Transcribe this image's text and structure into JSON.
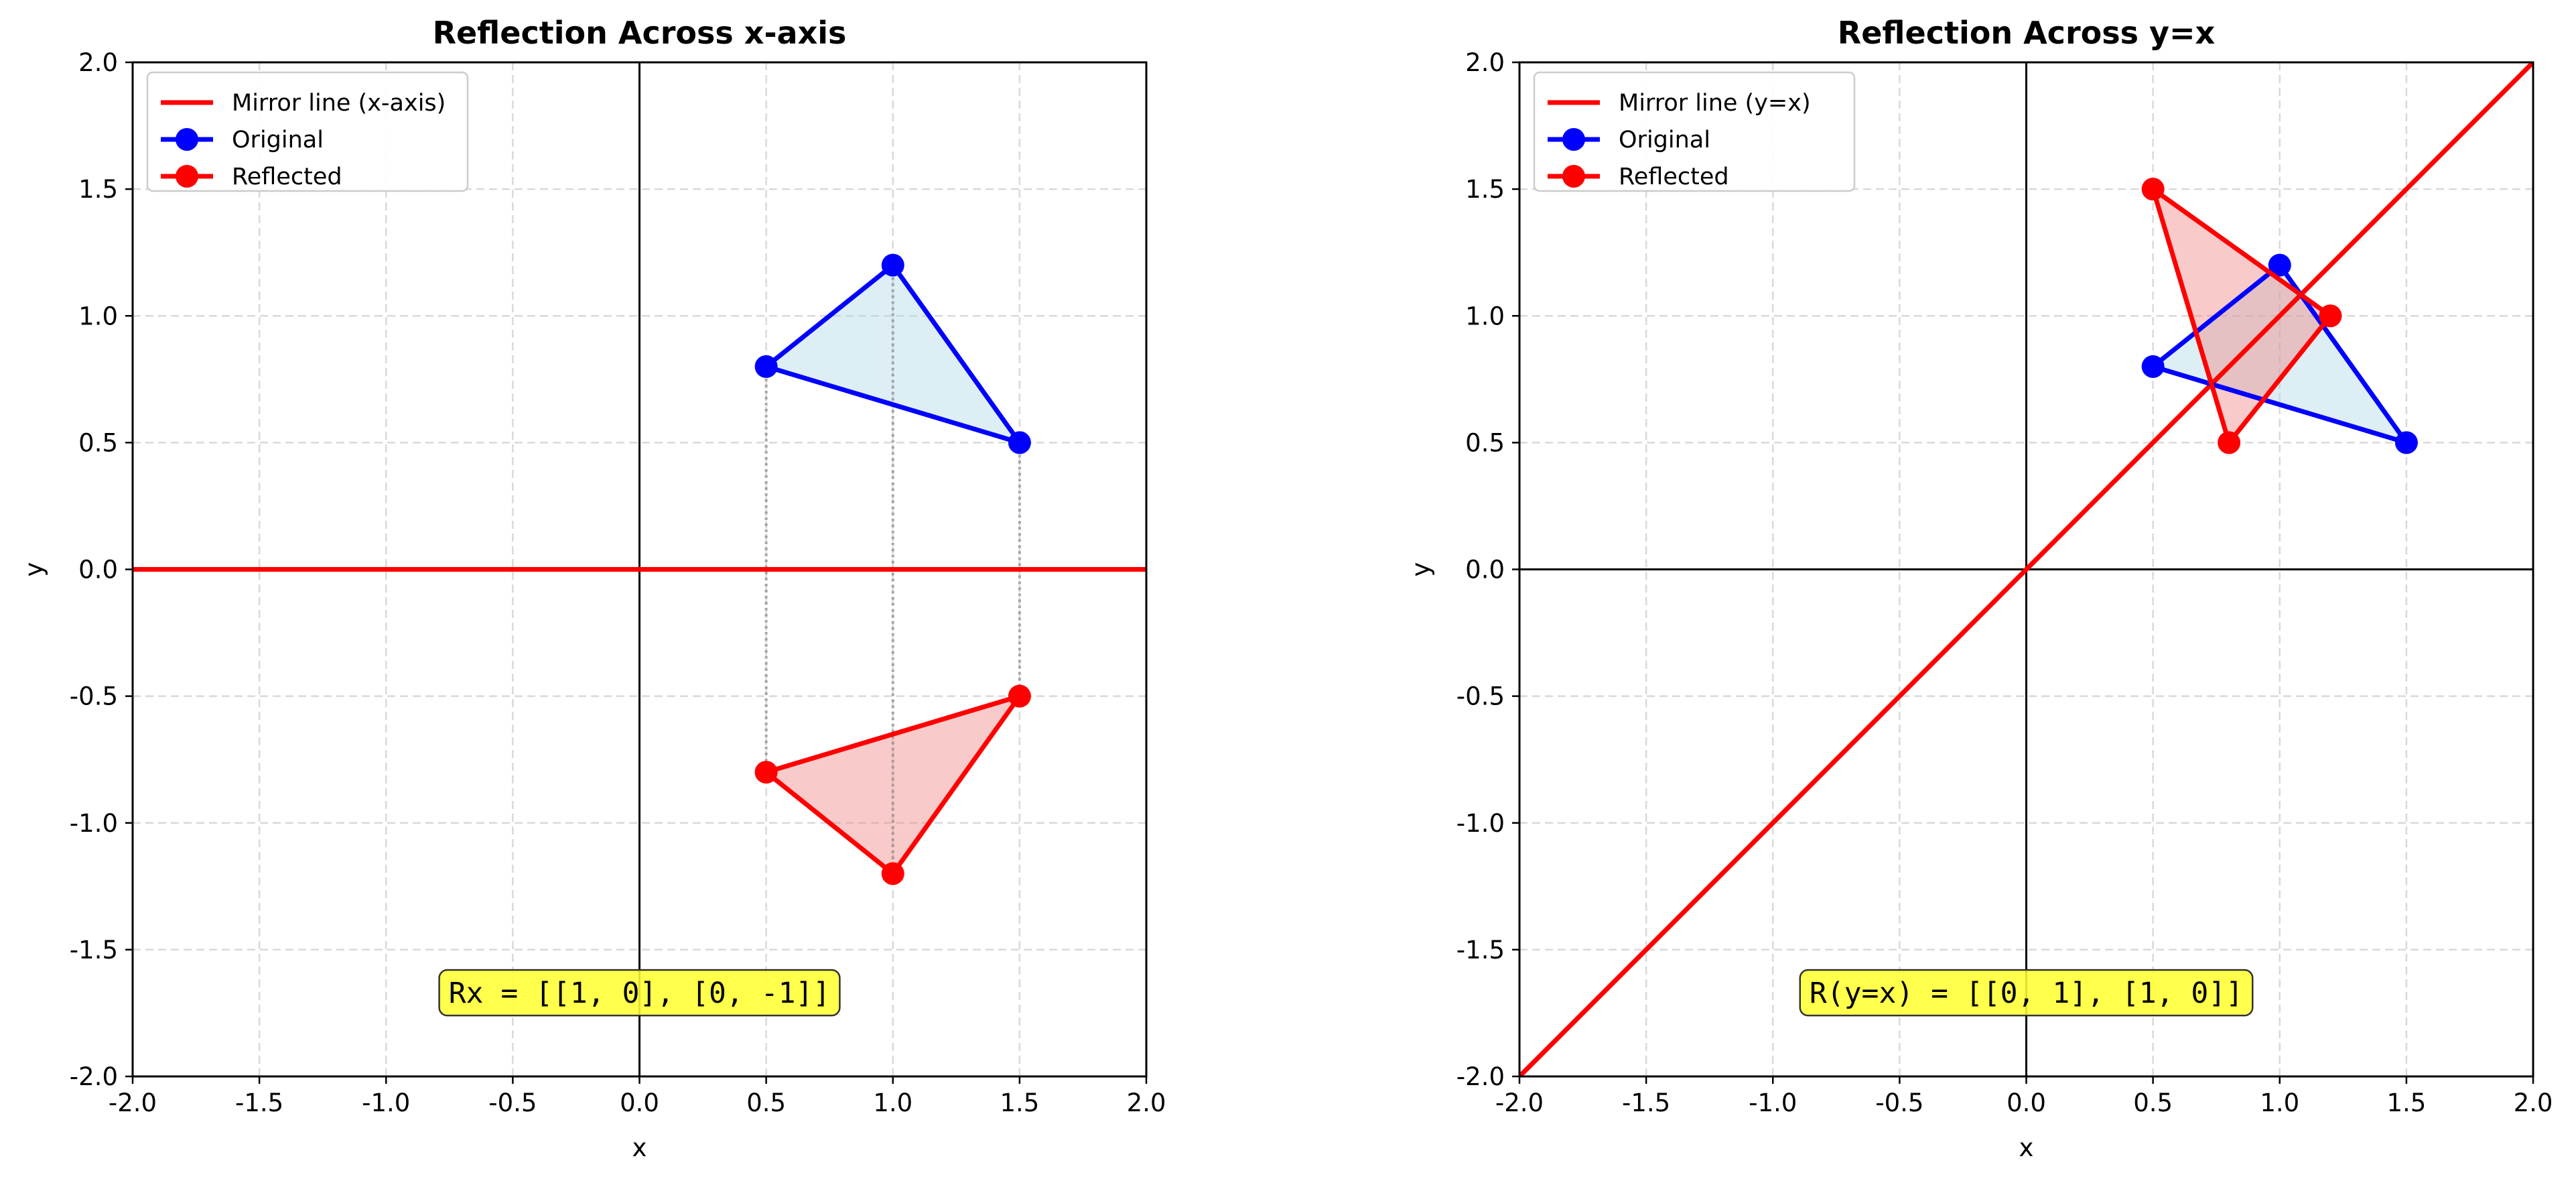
{
  "chart_data": [
    {
      "type": "line",
      "title": "Reflection Across x-axis",
      "xlabel": "x",
      "ylabel": "y",
      "xlim": [
        -2.0,
        2.0
      ],
      "ylim": [
        -2.0,
        2.0
      ],
      "xticks": [
        -2.0,
        -1.5,
        -1.0,
        -0.5,
        0.0,
        0.5,
        1.0,
        1.5,
        2.0
      ],
      "yticks": [
        -2.0,
        -1.5,
        -1.0,
        -0.5,
        0.0,
        0.5,
        1.0,
        1.5,
        2.0
      ],
      "xtick_labels": [
        "-2.0",
        "-1.5",
        "-1.0",
        "-0.5",
        "0.0",
        "0.5",
        "1.0",
        "1.5",
        "2.0"
      ],
      "ytick_labels": [
        "-2.0",
        "-1.5",
        "-1.0",
        "-0.5",
        "0.0",
        "0.5",
        "1.0",
        "1.5",
        "2.0"
      ],
      "grid": true,
      "legend_position": "top-left",
      "mirror_line": {
        "name": "Mirror line (x-axis)",
        "points": [
          [
            -2.0,
            0.0
          ],
          [
            2.0,
            0.0
          ]
        ],
        "color": "#ff0000"
      },
      "series": [
        {
          "name": "Original",
          "points": [
            [
              0.5,
              0.8
            ],
            [
              1.0,
              1.2
            ],
            [
              1.5,
              0.5
            ]
          ],
          "color": "#0000ff",
          "fill": "#add8e6"
        },
        {
          "name": "Reflected",
          "points": [
            [
              0.5,
              -0.8
            ],
            [
              1.0,
              -1.2
            ],
            [
              1.5,
              -0.5
            ]
          ],
          "color": "#ff0000",
          "fill": "#f08080"
        }
      ],
      "connectors": true,
      "annotation": "Rx = [[1, 0], [0, -1]]",
      "annotation_pos": [
        0.0,
        -1.67
      ],
      "annotation_bg": "#ffff33"
    },
    {
      "type": "line",
      "title": "Reflection Across y=x",
      "xlabel": "x",
      "ylabel": "y",
      "xlim": [
        -2.0,
        2.0
      ],
      "ylim": [
        -2.0,
        2.0
      ],
      "xticks": [
        -2.0,
        -1.5,
        -1.0,
        -0.5,
        0.0,
        0.5,
        1.0,
        1.5,
        2.0
      ],
      "yticks": [
        -2.0,
        -1.5,
        -1.0,
        -0.5,
        0.0,
        0.5,
        1.0,
        1.5,
        2.0
      ],
      "xtick_labels": [
        "-2.0",
        "-1.5",
        "-1.0",
        "-0.5",
        "0.0",
        "0.5",
        "1.0",
        "1.5",
        "2.0"
      ],
      "ytick_labels": [
        "-2.0",
        "-1.5",
        "-1.0",
        "-0.5",
        "0.0",
        "0.5",
        "1.0",
        "1.5",
        "2.0"
      ],
      "grid": true,
      "legend_position": "top-left",
      "mirror_line": {
        "name": "Mirror line (y=x)",
        "points": [
          [
            -2.0,
            -2.0
          ],
          [
            2.0,
            2.0
          ]
        ],
        "color": "#ff0000"
      },
      "series": [
        {
          "name": "Original",
          "points": [
            [
              0.5,
              0.8
            ],
            [
              1.0,
              1.2
            ],
            [
              1.5,
              0.5
            ]
          ],
          "color": "#0000ff",
          "fill": "#add8e6"
        },
        {
          "name": "Reflected",
          "points": [
            [
              0.8,
              0.5
            ],
            [
              1.2,
              1.0
            ],
            [
              0.5,
              1.5
            ]
          ],
          "color": "#ff0000",
          "fill": "#f08080"
        }
      ],
      "connectors": false,
      "annotation": "R(y=x) = [[0, 1], [1, 0]]",
      "annotation_pos": [
        0.0,
        -1.67
      ],
      "annotation_bg": "#ffff33"
    }
  ]
}
